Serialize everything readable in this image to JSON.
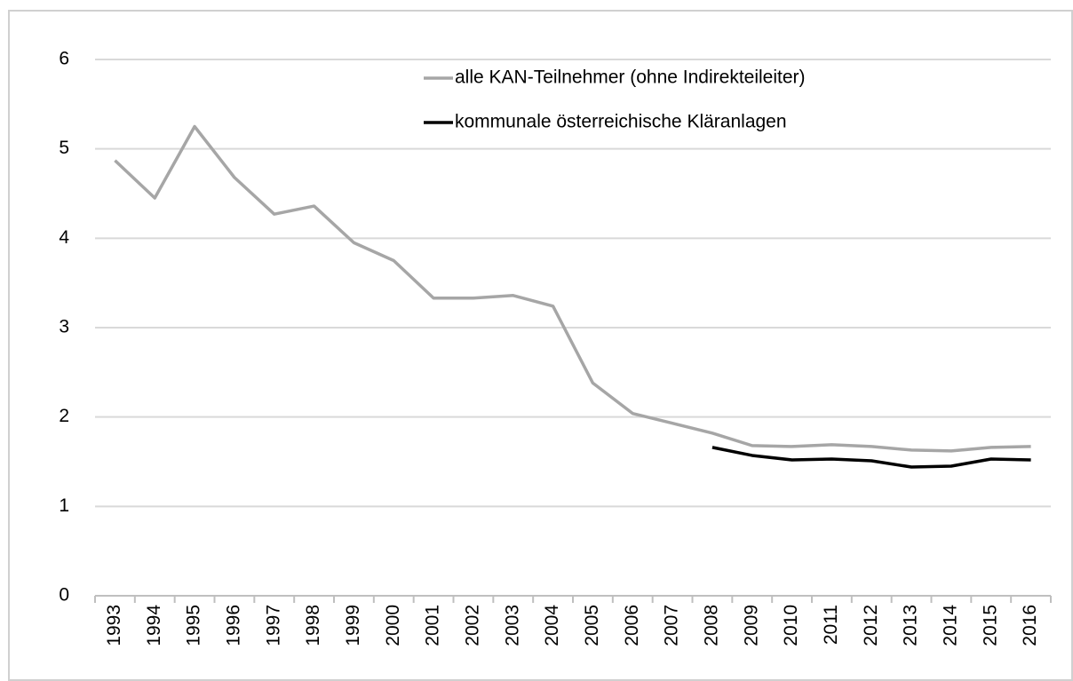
{
  "chart_data": {
    "type": "line",
    "categories": [
      "1993",
      "1994",
      "1995",
      "1996",
      "1997",
      "1998",
      "1999",
      "2000",
      "2001",
      "2002",
      "2003",
      "2004",
      "2005",
      "2006",
      "2007",
      "2008",
      "2009",
      "2010",
      "2011",
      "2012",
      "2013",
      "2014",
      "2015",
      "2016"
    ],
    "series": [
      {
        "name": "alle KAN-Teilnehmer (ohne Indirekteileiter)",
        "color": "#a6a6a6",
        "values": [
          4.87,
          4.45,
          5.25,
          4.68,
          4.27,
          4.36,
          3.95,
          3.75,
          3.33,
          3.33,
          3.36,
          3.24,
          2.38,
          2.04,
          1.93,
          1.82,
          1.68,
          1.67,
          1.69,
          1.67,
          1.63,
          1.62,
          1.66,
          1.67
        ]
      },
      {
        "name": "kommunale österreichische Kläranlagen",
        "color": "#000000",
        "values": [
          null,
          null,
          null,
          null,
          null,
          null,
          null,
          null,
          null,
          null,
          null,
          null,
          null,
          null,
          null,
          1.66,
          1.57,
          1.52,
          1.53,
          1.51,
          1.44,
          1.45,
          1.53,
          1.52
        ]
      }
    ],
    "ylim": [
      0,
      6
    ],
    "yticks": [
      0,
      1,
      2,
      3,
      4,
      5,
      6
    ],
    "grid": true,
    "legend": "top"
  }
}
